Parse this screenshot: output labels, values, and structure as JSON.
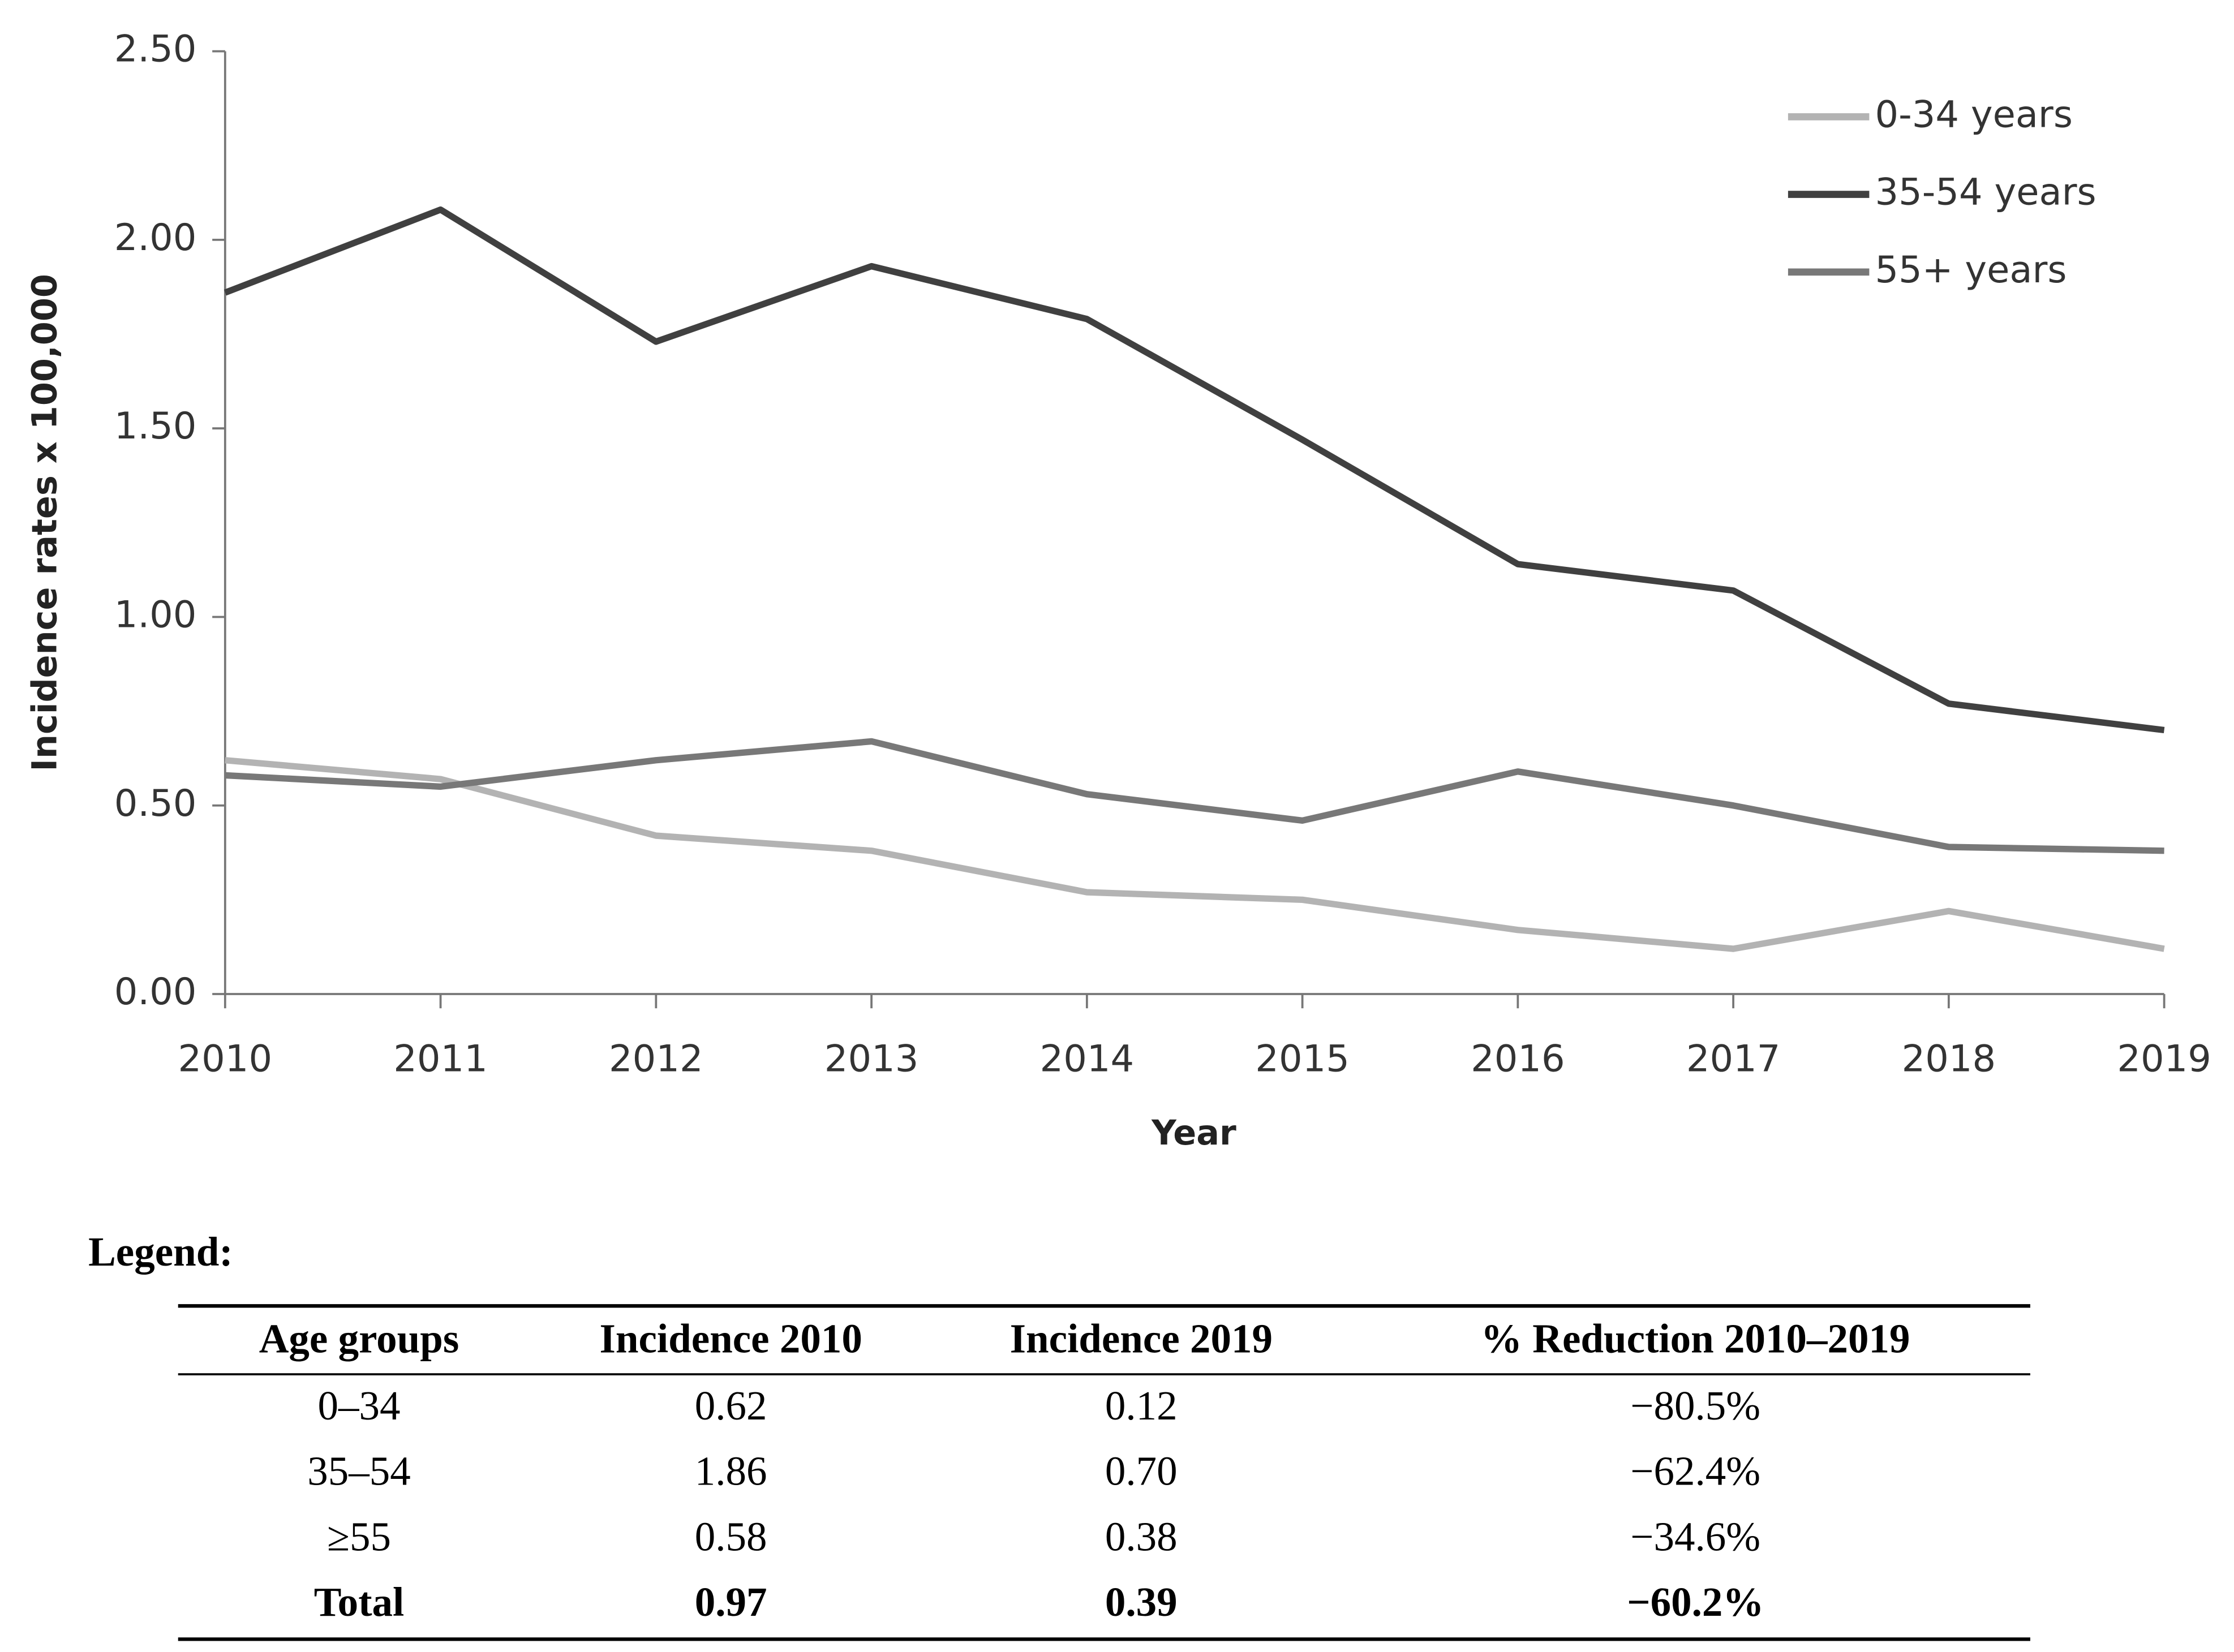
{
  "chart_data": {
    "type": "line",
    "x_label": "Year",
    "y_label": "Incidence rates x 100,000",
    "x": [
      2010,
      2011,
      2012,
      2013,
      2014,
      2015,
      2016,
      2017,
      2018,
      2019
    ],
    "xlim": [
      2010,
      2019
    ],
    "xticks": [
      2010,
      2011,
      2012,
      2013,
      2014,
      2015,
      2016,
      2017,
      2018,
      2019
    ],
    "ylim": [
      0,
      2.5
    ],
    "yticks": [
      {
        "value": 0,
        "label": "0.00"
      },
      {
        "value": 0.5,
        "label": "0.50"
      },
      {
        "value": 1,
        "label": "1.00"
      },
      {
        "value": 1.5,
        "label": "1.50"
      },
      {
        "value": 2,
        "label": "2.00"
      },
      {
        "value": 2.5,
        "label": "2.50"
      }
    ],
    "grid": false,
    "legend_position": "upper right",
    "series": [
      {
        "name": "0-34 years",
        "color": "#b3b3b3",
        "values": [
          0.62,
          0.57,
          0.42,
          0.38,
          0.27,
          0.25,
          0.17,
          0.12,
          0.22,
          0.12
        ]
      },
      {
        "name": "35-54 years",
        "color": "#404040",
        "values": [
          1.86,
          2.08,
          1.73,
          1.93,
          1.79,
          1.47,
          1.14,
          1.07,
          0.77,
          0.7
        ]
      },
      {
        "name": "55+ years",
        "color": "#787878",
        "values": [
          0.58,
          0.55,
          0.62,
          0.67,
          0.53,
          0.46,
          0.59,
          0.5,
          0.39,
          0.38
        ]
      }
    ]
  },
  "table": {
    "caption": "Legend:",
    "header": [
      "Age groups",
      "Incidence 2010",
      "Incidence 2019",
      "% Reduction 2010–2019"
    ],
    "rows": [
      [
        "0–34",
        "0.62",
        "0.12",
        "−80.5%"
      ],
      [
        "35–54",
        "1.86",
        "0.70",
        "−62.4%"
      ],
      [
        "≥55",
        "0.58",
        "0.38",
        "−34.6%"
      ],
      [
        "Total",
        "0.97",
        "0.39",
        "−60.2%"
      ]
    ]
  }
}
